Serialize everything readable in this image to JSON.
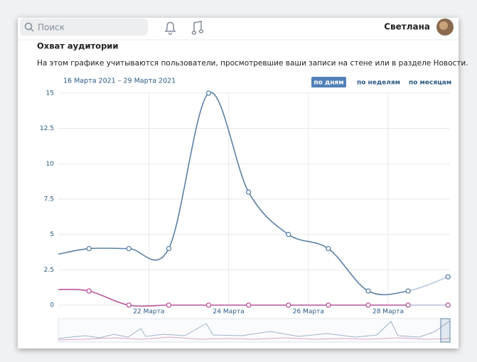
{
  "header": {
    "search_placeholder": "Поиск",
    "user_name": "Светлана"
  },
  "section": {
    "title": "Охват аудитории",
    "description": "На этом графике учитываются пользователи, просмотревшие ваши записи на стене или в разделе Новости."
  },
  "chart_data": {
    "type": "line",
    "date_range": "16 Марта 2021 – 29 Марта 2021",
    "periods": [
      "по дням",
      "по неделям",
      "по месяцам"
    ],
    "active_period": 0,
    "x": [
      19.73,
      20.5,
      21.5,
      22.5,
      23.5,
      24.5,
      25.5,
      26.5,
      27.5,
      28.5,
      29.5
    ],
    "xlim": [
      19.73,
      29.55
    ],
    "xticks": [
      {
        "value": 22,
        "label": "22 Марта"
      },
      {
        "value": 24,
        "label": "24 Марта"
      },
      {
        "value": 26,
        "label": "26 Марта"
      },
      {
        "value": 28,
        "label": "28 Марта"
      }
    ],
    "ylim": [
      0,
      15
    ],
    "yticks": [
      0,
      2.5,
      5,
      7.5,
      10,
      12.5,
      15
    ],
    "grid": true,
    "series": [
      {
        "color": "#5b80a5",
        "values": [
          3.6,
          4,
          4,
          4,
          15,
          8,
          5,
          4,
          1,
          1,
          2
        ]
      },
      {
        "color": "#b9569c",
        "values": [
          1.1,
          1,
          0,
          0,
          0,
          0,
          0,
          0,
          0,
          0,
          0
        ]
      }
    ]
  }
}
